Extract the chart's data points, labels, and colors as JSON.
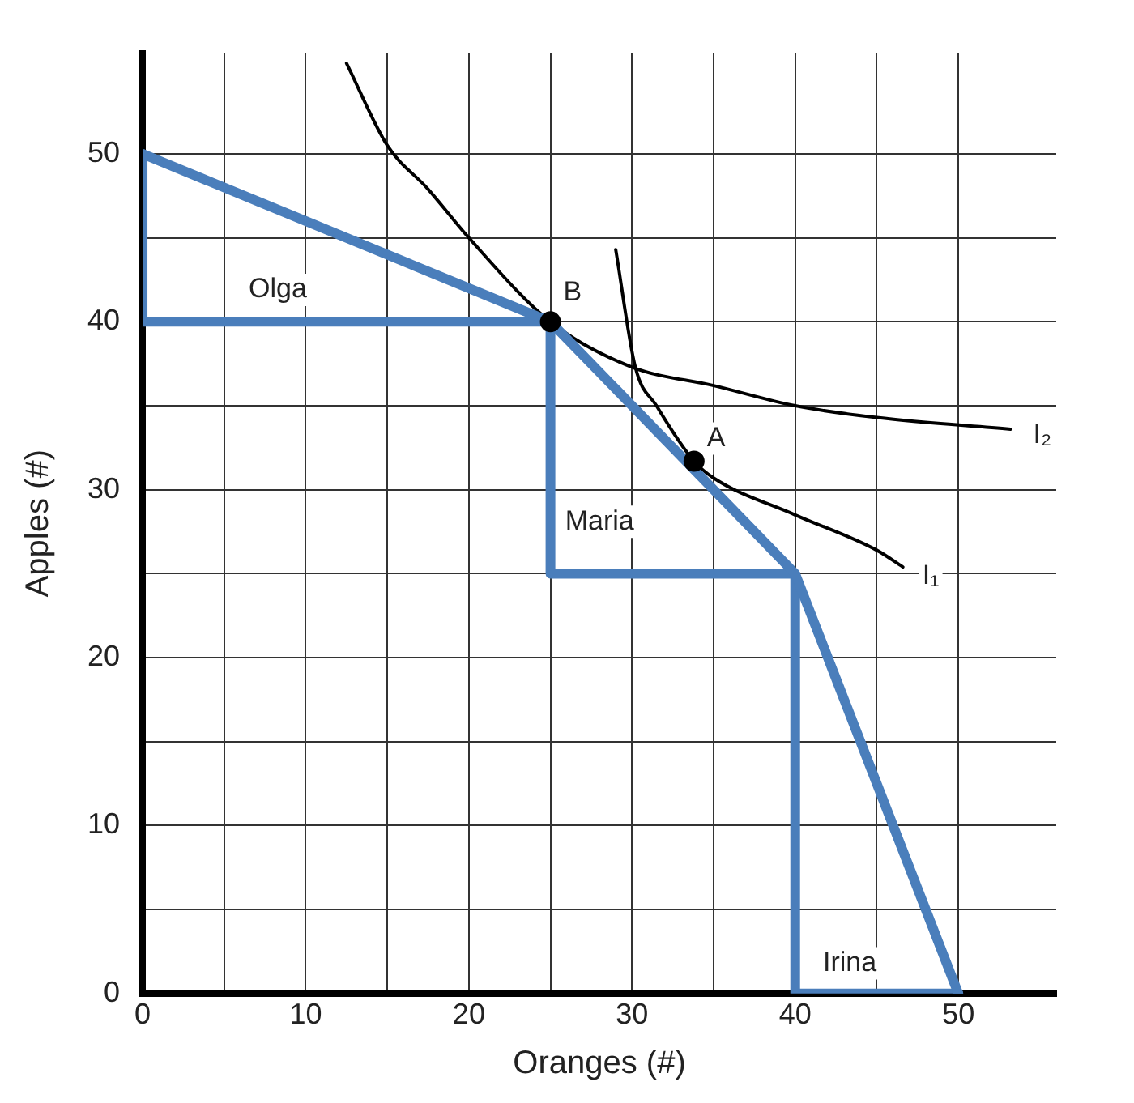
{
  "chart_data": {
    "type": "line",
    "xlabel": "Oranges (#)",
    "ylabel": "Apples (#)",
    "xlim": [
      0,
      56
    ],
    "ylim": [
      0,
      56
    ],
    "xticks": [
      0,
      {
        "value": 5,
        "label": null
      },
      10,
      {
        "value": 15,
        "label": null
      },
      20,
      {
        "value": 25,
        "label": null
      },
      30,
      {
        "value": 35,
        "label": null
      },
      40,
      {
        "value": 45,
        "label": null
      },
      50
    ],
    "yticks": [
      0,
      {
        "value": 5,
        "label": null
      },
      10,
      {
        "value": 15,
        "label": null
      },
      20,
      {
        "value": 25,
        "label": null
      },
      30,
      {
        "value": 35,
        "label": null
      },
      40,
      {
        "value": 45,
        "label": null
      },
      50
    ],
    "grid": true,
    "legend": false,
    "series": [
      {
        "color": "#4a7ebb",
        "x": [
          0,
          25,
          40,
          50
        ],
        "values": [
          50,
          40,
          25,
          0
        ]
      },
      {
        "color": "#4a7ebb",
        "x": [
          0,
          0,
          25
        ],
        "values": [
          50,
          40,
          40
        ]
      },
      {
        "color": "#4a7ebb",
        "x": [
          25,
          25,
          40
        ],
        "values": [
          40,
          25,
          25
        ]
      },
      {
        "color": "#4a7ebb",
        "x": [
          40,
          40,
          50
        ],
        "values": [
          25,
          0,
          0
        ]
      },
      {
        "color": "#000000",
        "x": [
          12.5,
          15,
          17.5,
          20,
          25,
          30,
          35,
          40,
          45,
          53.2
        ],
        "values": [
          55.4,
          50.5,
          47.9,
          45,
          40,
          37.3,
          36.2,
          35,
          34.3,
          33.6
        ]
      },
      {
        "color": "#000000",
        "x": [
          29,
          30.2,
          31.5,
          33.8,
          35,
          40,
          45,
          46.6
        ],
        "values": [
          44.3,
          37.3,
          35,
          31.7,
          30.7,
          28.5,
          26.4,
          25.4
        ]
      },
      {
        "type": "scatter",
        "marker": "circle",
        "color": "#000000",
        "x": [
          25,
          33.8
        ],
        "values": [
          40,
          31.7
        ]
      }
    ],
    "annotations": [
      "Olga",
      "Maria",
      "Irina",
      {
        "text": "B",
        "x": 25,
        "y": 40
      },
      {
        "text": "A",
        "x": 33.8,
        "y": 31.7
      },
      {
        "text": "I₂",
        "x": 53.2,
        "y": 33.6
      },
      {
        "text": "I₁",
        "x": 46.6,
        "y": 25.4
      }
    ]
  }
}
